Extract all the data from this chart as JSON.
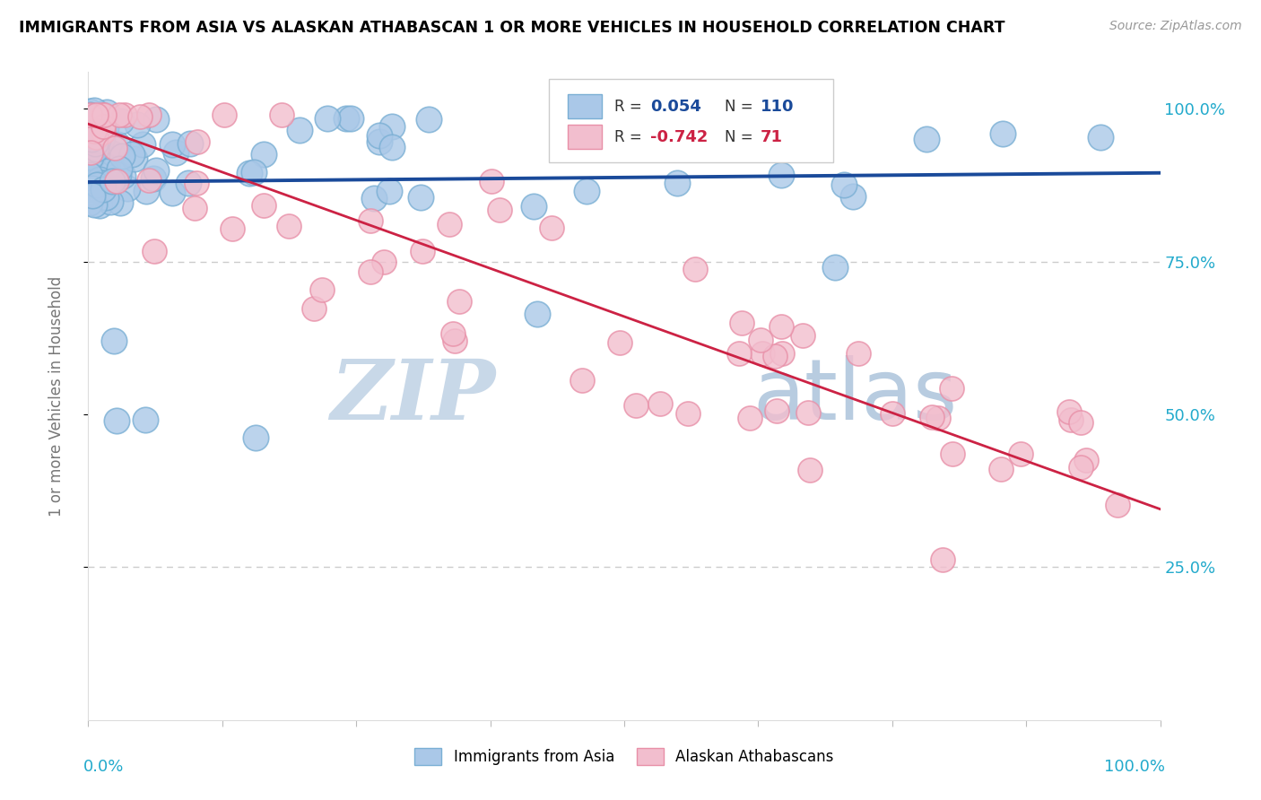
{
  "title": "IMMIGRANTS FROM ASIA VS ALASKAN ATHABASCAN 1 OR MORE VEHICLES IN HOUSEHOLD CORRELATION CHART",
  "source": "Source: ZipAtlas.com",
  "ylabel": "1 or more Vehicles in Household",
  "legend_blue_label": "Immigrants from Asia",
  "legend_pink_label": "Alaskan Athabascans",
  "R_blue": 0.054,
  "N_blue": 110,
  "R_pink": -0.742,
  "N_pink": 71,
  "blue_color": "#aac8e8",
  "blue_edge_color": "#7aafd4",
  "pink_color": "#f2bece",
  "pink_edge_color": "#e890a8",
  "trend_blue_color": "#1a4a9a",
  "trend_pink_color": "#cc2244",
  "background_color": "#ffffff",
  "grid_color": "#cccccc",
  "title_color": "#000000",
  "axis_label_color": "#777777",
  "r_text_blue": "#1a4a9a",
  "r_text_pink": "#cc2244",
  "tick_label_color": "#22aacc",
  "watermark_zip_color": "#c8d8e8",
  "watermark_atlas_color": "#b8cce0",
  "blue_trend_start_y": 0.88,
  "blue_trend_end_y": 0.895,
  "pink_trend_start_y": 0.975,
  "pink_trend_end_y": 0.345,
  "ylim_min": 0.0,
  "ylim_max": 1.06,
  "xlim_min": 0.0,
  "xlim_max": 1.0
}
